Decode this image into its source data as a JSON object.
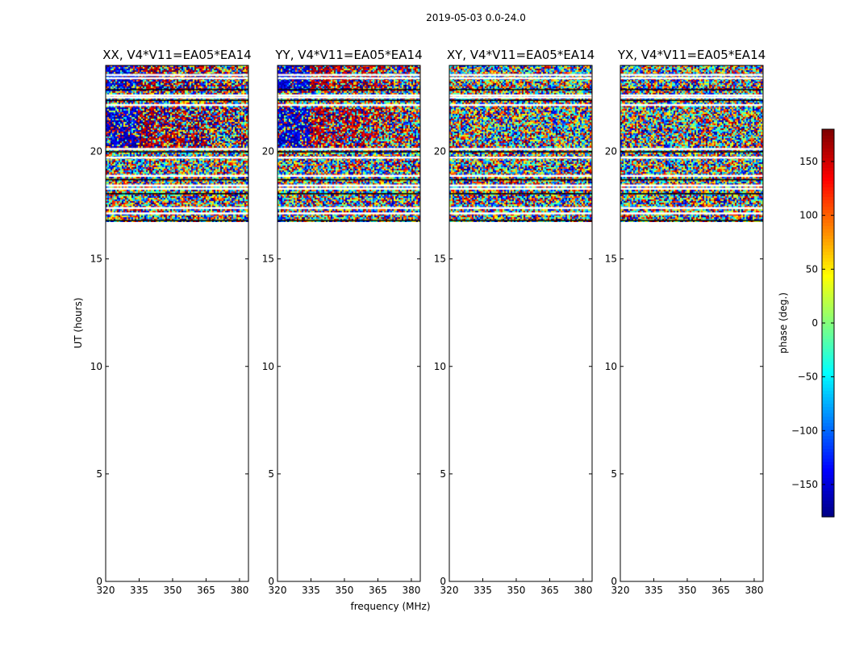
{
  "figure": {
    "suptitle": "2019-05-03 0.0-24.0"
  },
  "chart_data": {
    "type": "heatmap",
    "suptitle": "2019-05-03 0.0-24.0",
    "xlabel": "frequency (MHz)",
    "ylabel": "UT (hours)",
    "xlim": [
      320,
      384
    ],
    "ylim": [
      0,
      24
    ],
    "xticks": [
      320,
      335,
      350,
      365,
      380
    ],
    "yticks": [
      0,
      5,
      10,
      15,
      20
    ],
    "data_ut_range": [
      16.7,
      24.0
    ],
    "bright_band_ut": [
      20.2,
      22.1
    ],
    "flag_rows_ut": [
      16.8,
      17.15,
      17.4,
      18.05,
      18.3,
      18.45,
      18.7,
      18.9,
      19.75,
      20.0,
      20.15,
      22.2,
      22.4,
      22.55,
      22.65,
      22.9,
      23.45,
      23.6
    ],
    "panels": [
      {
        "title": "XX, V4*V11=EA05*EA14",
        "polarization": "XX",
        "phase_bias_deg": 170,
        "bias_strength": 0.55
      },
      {
        "title": "YY, V4*V11=EA05*EA14",
        "polarization": "YY",
        "phase_bias_deg": 160,
        "bias_strength": 0.6
      },
      {
        "title": "XY, V4*V11=EA05*EA14",
        "polarization": "XY",
        "phase_bias_deg": 0,
        "bias_strength": 0.0
      },
      {
        "title": "YX, V4*V11=EA05*EA14",
        "polarization": "YX",
        "phase_bias_deg": 0,
        "bias_strength": 0.0
      }
    ],
    "colorbar": {
      "label": "phase (deg.)",
      "range": [
        -180,
        180
      ],
      "ticks": [
        150,
        100,
        50,
        0,
        -50,
        -100,
        -150
      ],
      "tick_labels": [
        "150",
        "100",
        "50",
        "0",
        "−50",
        "−100",
        "−150"
      ],
      "colormap": "jet"
    }
  }
}
